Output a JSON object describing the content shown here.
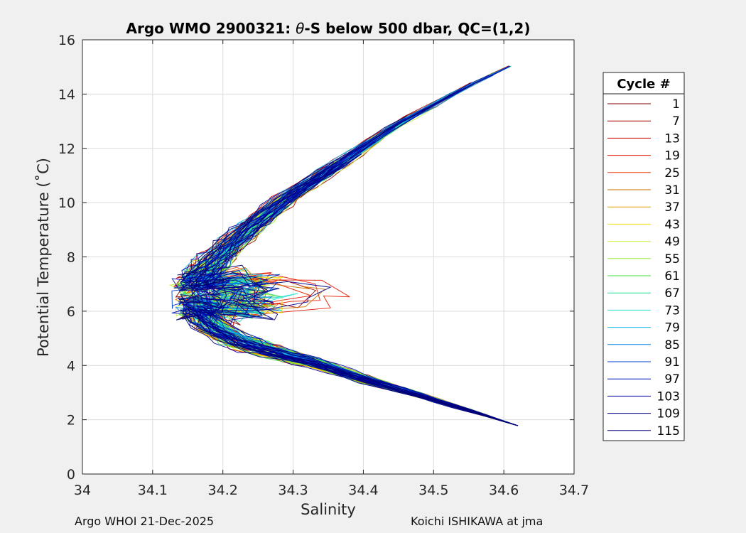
{
  "chart_data": {
    "type": "line",
    "title": "Argo WMO 2900321: θ-S below 500 dbar,  QC=(1,2)",
    "title_parts": {
      "prefix": "Argo WMO 2900321: ",
      "theta": "θ",
      "suffix": "-S below 500 dbar,  QC=(1,2)"
    },
    "xlabel": "Salinity",
    "ylabel": "Potential Temperature (˚C)",
    "xlim": [
      34.0,
      34.7
    ],
    "ylim": [
      0,
      16
    ],
    "xticks": [
      34,
      34.1,
      34.2,
      34.3,
      34.4,
      34.5,
      34.6,
      34.7
    ],
    "xtick_labels": [
      "34",
      "34.1",
      "34.2",
      "34.3",
      "34.4",
      "34.5",
      "34.6",
      "34.7"
    ],
    "yticks": [
      0,
      2,
      4,
      6,
      8,
      10,
      12,
      14,
      16
    ],
    "ytick_labels": [
      "0",
      "2",
      "4",
      "6",
      "8",
      "10",
      "12",
      "14",
      "16"
    ],
    "grid": true,
    "legend": {
      "title": "Cycle #",
      "placement": "outside-right",
      "entries": [
        "1",
        "7",
        "13",
        "19",
        "25",
        "31",
        "37",
        "43",
        "49",
        "55",
        "61",
        "67",
        "73",
        "79",
        "85",
        "91",
        "97",
        "103",
        "109",
        "115"
      ],
      "colors": [
        "#800000",
        "#a50000",
        "#cc0000",
        "#e61a00",
        "#f04010",
        "#d07000",
        "#d8a000",
        "#f0e000",
        "#c8f040",
        "#90ee30",
        "#40e040",
        "#20d890",
        "#20e0d0",
        "#10b8e8",
        "#0080e0",
        "#0040d0",
        "#0010c0",
        "#0000a0",
        "#000088",
        "#000078"
      ]
    },
    "series_envelope": {
      "description": "Each cycle profile follows the theta-S curve: warm/salty at top, salinity minimum near 6-7 C, saline deep water",
      "upper_branch": [
        [
          34.635,
          15.35
        ],
        [
          34.55,
          14.3
        ],
        [
          34.45,
          12.9
        ],
        [
          34.37,
          11.5
        ],
        [
          34.3,
          10.3
        ],
        [
          34.25,
          9.3
        ],
        [
          34.21,
          8.4
        ],
        [
          34.18,
          7.6
        ],
        [
          34.16,
          7.0
        ]
      ],
      "lower_branch": [
        [
          34.16,
          6.2
        ],
        [
          34.18,
          5.5
        ],
        [
          34.22,
          4.9
        ],
        [
          34.27,
          4.5
        ],
        [
          34.33,
          4.1
        ],
        [
          34.4,
          3.5
        ],
        [
          34.48,
          2.9
        ],
        [
          34.55,
          2.35
        ],
        [
          34.62,
          1.78
        ]
      ],
      "s_min": 34.1,
      "theta_at_smin": 6.4,
      "deep_end": [
        34.62,
        1.78
      ],
      "top_end": [
        34.635,
        15.35
      ]
    }
  },
  "footer": {
    "left": "Argo WHOI 21-Dec-2025",
    "right": "Koichi ISHIKAWA at jma"
  }
}
